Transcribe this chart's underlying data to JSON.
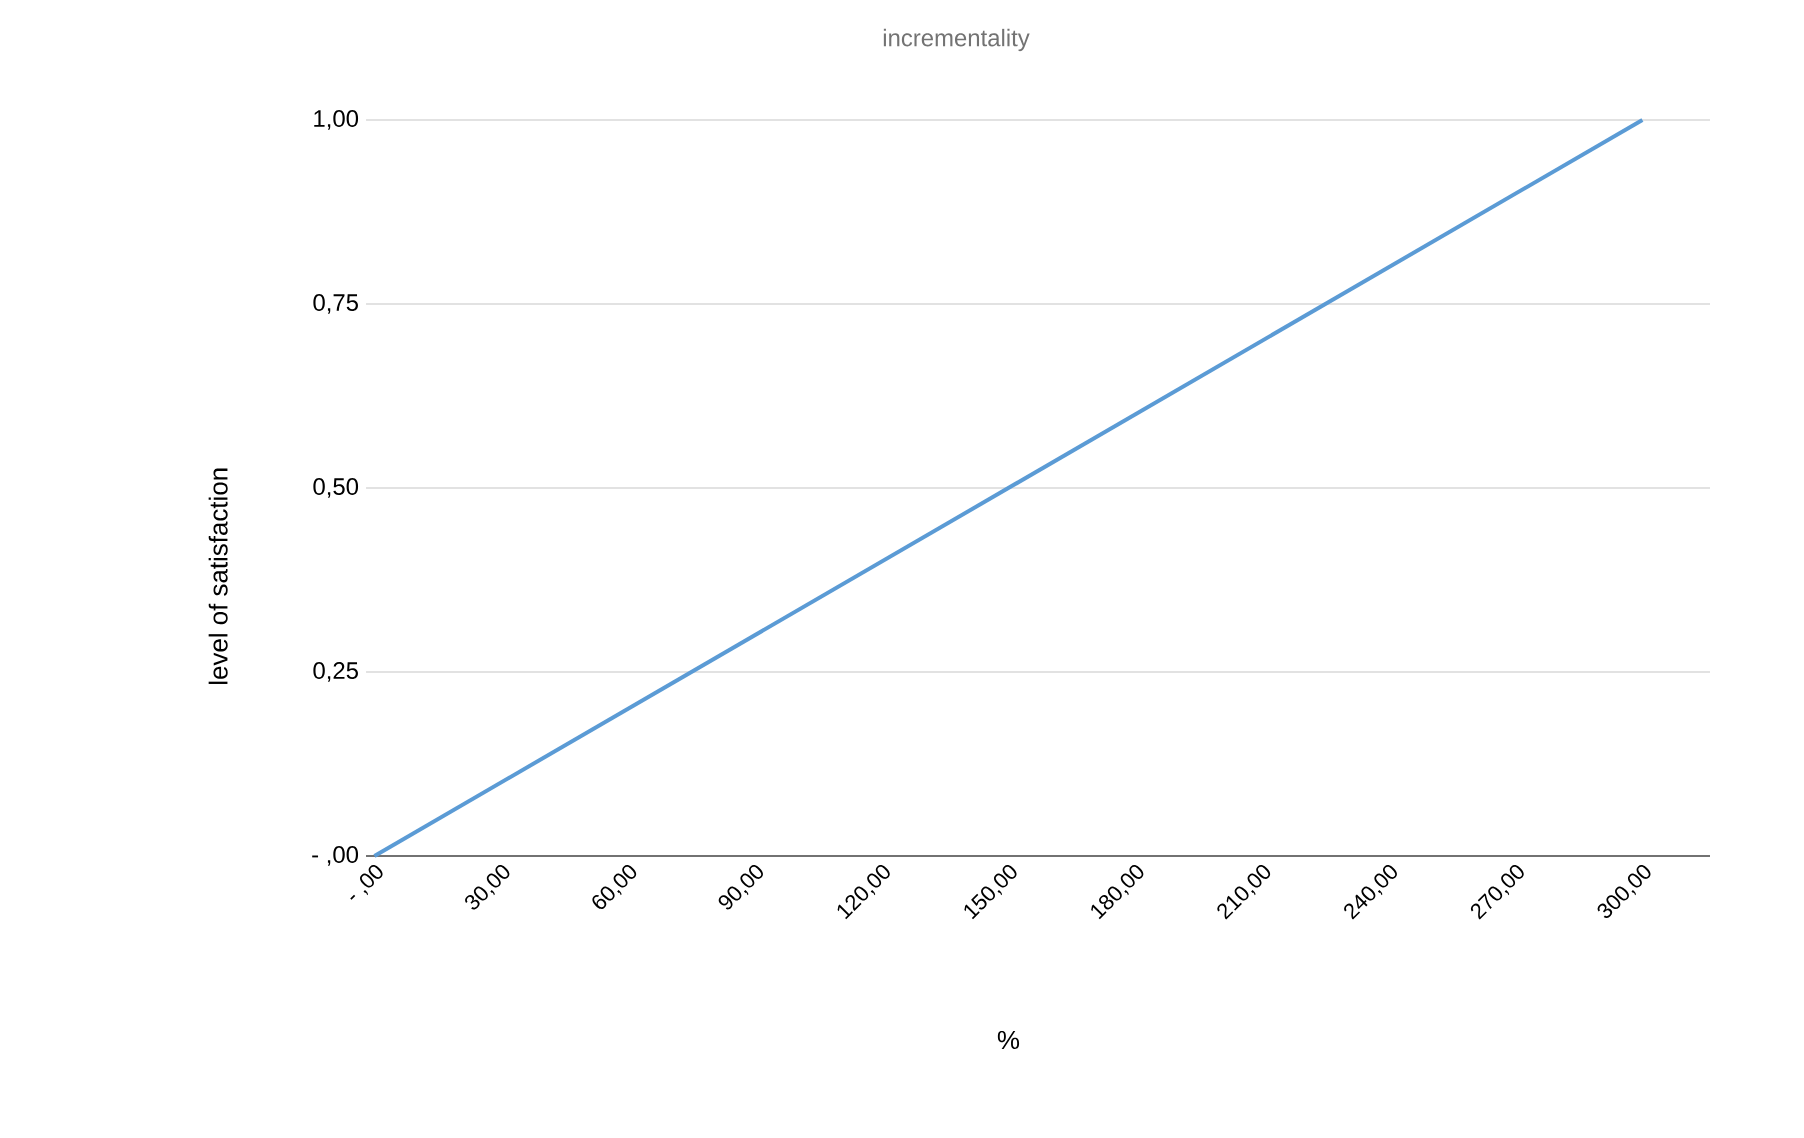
{
  "chart_data": {
    "type": "line",
    "title": "incrementality",
    "xlabel": "%",
    "ylabel": "level of satisfaction",
    "x": [
      0,
      300
    ],
    "series": [
      {
        "color": "#5b9bd5",
        "values": [
          0,
          1
        ]
      }
    ],
    "xlim": [
      -2,
      316
    ],
    "ylim": [
      0,
      1
    ],
    "xticks": [
      {
        "value": 0,
        "label": "- ,00"
      },
      {
        "value": 30,
        "label": "30,00"
      },
      {
        "value": 60,
        "label": "60,00"
      },
      {
        "value": 90,
        "label": "90,00"
      },
      {
        "value": 120,
        "label": "120,00"
      },
      {
        "value": 150,
        "label": "150,00"
      },
      {
        "value": 180,
        "label": "180,00"
      },
      {
        "value": 210,
        "label": "210,00"
      },
      {
        "value": 240,
        "label": "240,00"
      },
      {
        "value": 270,
        "label": "270,00"
      },
      {
        "value": 300,
        "label": "300,00"
      }
    ],
    "yticks": [
      {
        "value": 0,
        "label": "- ,00"
      },
      {
        "value": 0.25,
        "label": "0,25"
      },
      {
        "value": 0.5,
        "label": "0,50"
      },
      {
        "value": 0.75,
        "label": "0,75"
      },
      {
        "value": 1,
        "label": "1,00"
      }
    ],
    "grid": "y",
    "marker": "none",
    "line_style": "solid"
  }
}
